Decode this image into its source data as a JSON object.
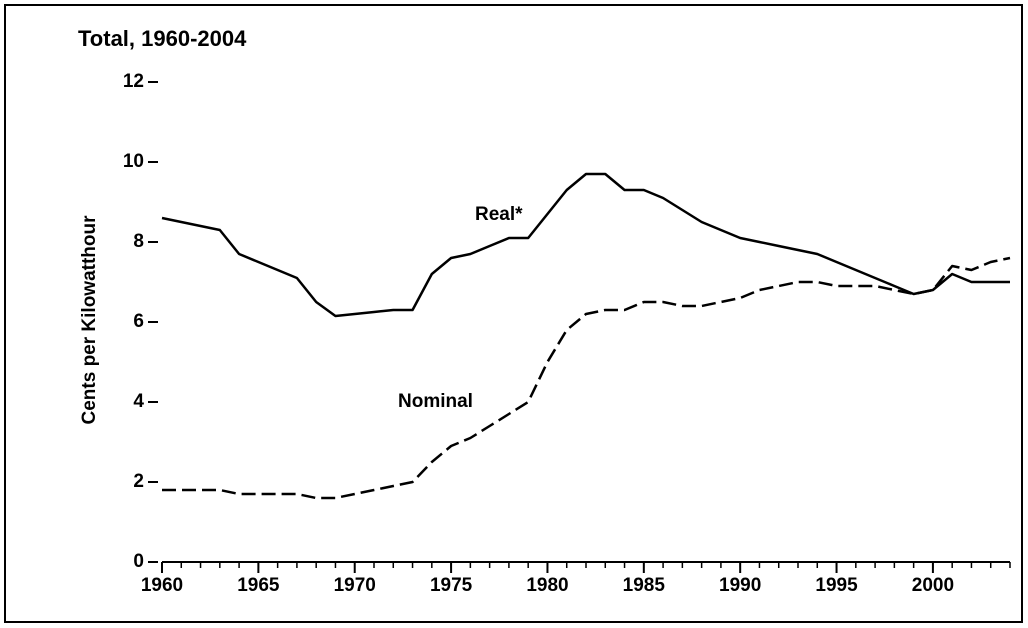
{
  "chart_data": {
    "type": "line",
    "title": "Total, 1960-2004",
    "y_label": "Cents per Kilowatthour",
    "x": [
      1960,
      1961,
      1962,
      1963,
      1964,
      1965,
      1966,
      1967,
      1968,
      1969,
      1970,
      1971,
      1972,
      1973,
      1974,
      1975,
      1976,
      1977,
      1978,
      1979,
      1980,
      1981,
      1982,
      1983,
      1984,
      1985,
      1986,
      1987,
      1988,
      1989,
      1990,
      1991,
      1992,
      1993,
      1994,
      1995,
      1996,
      1997,
      1998,
      1999,
      2000,
      2001,
      2002,
      2003,
      2004
    ],
    "series": [
      {
        "name": "Real*",
        "color": "#000000",
        "style": "solid",
        "values": [
          8.6,
          8.5,
          8.4,
          8.3,
          7.7,
          7.5,
          7.3,
          7.1,
          6.5,
          6.15,
          6.2,
          6.25,
          6.3,
          6.3,
          7.2,
          7.6,
          7.7,
          7.9,
          8.1,
          8.1,
          8.7,
          9.3,
          9.7,
          9.7,
          9.3,
          9.3,
          9.1,
          8.8,
          8.5,
          8.3,
          8.1,
          8.0,
          7.9,
          7.8,
          7.7,
          7.5,
          7.3,
          7.1,
          6.9,
          6.7,
          6.8,
          7.2,
          7.0,
          7.0,
          7.0
        ]
      },
      {
        "name": "Nominal",
        "color": "#000000",
        "style": "dashed",
        "values": [
          1.8,
          1.8,
          1.8,
          1.8,
          1.7,
          1.7,
          1.7,
          1.7,
          1.6,
          1.6,
          1.7,
          1.8,
          1.9,
          2.0,
          2.5,
          2.9,
          3.1,
          3.4,
          3.7,
          4.0,
          5.0,
          5.8,
          6.2,
          6.3,
          6.3,
          6.5,
          6.5,
          6.4,
          6.4,
          6.5,
          6.6,
          6.8,
          6.9,
          7.0,
          7.0,
          6.9,
          6.9,
          6.9,
          6.8,
          6.7,
          6.8,
          7.4,
          7.3,
          7.5,
          7.6
        ]
      }
    ],
    "xlim": [
      1960,
      2004
    ],
    "xticks": [
      1960,
      1965,
      1970,
      1975,
      1980,
      1985,
      1990,
      1995,
      2000
    ],
    "ylim": [
      0,
      12
    ],
    "yticks": [
      0,
      2,
      4,
      6,
      8,
      10,
      12
    ],
    "grid": false
  }
}
